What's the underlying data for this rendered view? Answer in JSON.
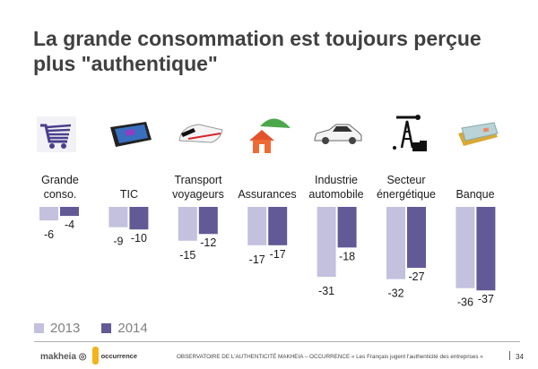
{
  "title": "La grande consommation est toujours perçue plus \"authentique\"",
  "categories": [
    {
      "label_line1": "Grande",
      "label_line2": "conso.",
      "icon": "shopping-cart-icon"
    },
    {
      "label_line1": "",
      "label_line2": "TIC",
      "icon": "tablet-icon"
    },
    {
      "label_line1": "Transport",
      "label_line2": "voyageurs",
      "icon": "train-icon"
    },
    {
      "label_line1": "",
      "label_line2": "Assurances",
      "icon": "house-umbrella-icon"
    },
    {
      "label_line1": "Industrie",
      "label_line2": "automobile",
      "icon": "car-icon"
    },
    {
      "label_line1": "Secteur",
      "label_line2": "énergétique",
      "icon": "oil-derrick-icon"
    },
    {
      "label_line1": "",
      "label_line2": "Banque",
      "icon": "credit-cards-icon"
    }
  ],
  "chart_data": {
    "type": "bar",
    "title": "La grande consommation est toujours perçue plus \"authentique\"",
    "categories": [
      "Grande conso.",
      "TIC",
      "Transport voyageurs",
      "Assurances",
      "Industrie automobile",
      "Secteur énergétique",
      "Banque"
    ],
    "series": [
      {
        "name": "2013",
        "color": "#c3c1de",
        "values": [
          -6,
          -9,
          -15,
          -17,
          -31,
          -32,
          -36
        ]
      },
      {
        "name": "2014",
        "color": "#625a96",
        "values": [
          -4,
          -10,
          -12,
          -17,
          -18,
          -27,
          -37
        ]
      }
    ],
    "xlabel": "",
    "ylabel": "",
    "ylim": [
      -37,
      0
    ],
    "grid": false,
    "legend": "bottom-left",
    "data_labels": true
  },
  "legend": [
    {
      "label": "2013",
      "color": "#c3c1de"
    },
    {
      "label": "2014",
      "color": "#625a96"
    }
  ],
  "footer": {
    "logo1": "makheia",
    "logo2": "occurrence",
    "text": "OBSERVATOIRE DE L'AUTHENTICITÉ MAKHEIA – OCCURRENCE  « Les Français jugent l'authenticité des entreprises »",
    "page_number": "34"
  }
}
